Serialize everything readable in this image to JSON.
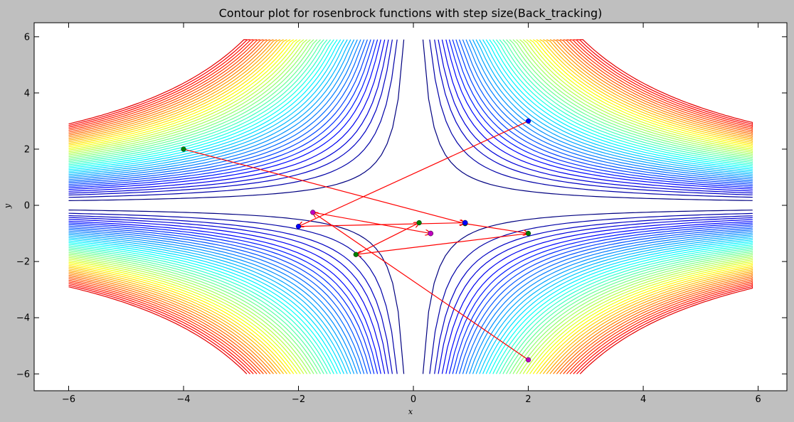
{
  "chart_data": {
    "type": "contour",
    "title": "Contour plot for rosenbrock functions with step size(Back_tracking)",
    "xlabel": "x",
    "ylabel": "y",
    "xlim": [
      -6.6,
      6.5
    ],
    "ylim": [
      -6.6,
      6.5
    ],
    "xticks": [
      -6,
      -4,
      -2,
      0,
      2,
      4,
      6
    ],
    "yticks": [
      -6,
      -4,
      -2,
      0,
      2,
      4,
      6
    ],
    "tick_labels_x": [
      "−6",
      "−4",
      "−2",
      "0",
      "2",
      "4",
      "6"
    ],
    "tick_labels_y": [
      "−6",
      "−4",
      "−2",
      "0",
      "2",
      "4",
      "6"
    ],
    "grid": false,
    "contour_domain": {
      "x": [
        -6,
        5.9
      ],
      "y": [
        -6,
        5.9
      ]
    },
    "contour_levels": [
      1,
      1.7,
      2.2,
      2.6,
      3.0,
      3.4,
      3.75,
      4.1,
      4.45,
      4.8,
      5.15,
      5.5,
      5.85,
      6.2,
      6.55,
      6.9,
      7.25,
      7.6,
      7.95,
      8.3,
      8.65,
      9.0,
      9.35,
      9.7,
      10.05,
      10.4,
      10.75,
      11.1,
      11.45,
      11.8,
      12.15,
      12.5,
      12.85,
      13.2,
      13.55,
      13.9,
      14.25,
      14.6,
      14.95,
      15.3,
      15.65,
      16.0,
      16.35,
      16.7,
      17.05,
      17.4
    ],
    "contour_colormap": "jet",
    "colors": {
      "arrow": "#ff0000",
      "blue": "#0000ff",
      "green": "#007f00",
      "magenta": "#bf00bf"
    },
    "paths": [
      {
        "color": "green",
        "points": [
          [
            -4,
            2
          ],
          [
            0.9,
            -0.65
          ],
          [
            2,
            -1
          ],
          [
            -1,
            -1.75
          ],
          [
            0.1,
            -0.62
          ]
        ]
      },
      {
        "color": "blue",
        "points": [
          [
            2,
            3
          ],
          [
            -2,
            -0.75
          ],
          [
            0.9,
            -0.62
          ]
        ]
      },
      {
        "color": "magenta",
        "points": [
          [
            2,
            -5.5
          ],
          [
            -1.75,
            -0.25
          ],
          [
            0.3,
            -1
          ]
        ]
      }
    ],
    "end_points": [
      {
        "color": "magenta",
        "x": 0.3,
        "y": -1
      },
      {
        "color": "blue",
        "x": 0.9,
        "y": -0.62
      }
    ]
  }
}
